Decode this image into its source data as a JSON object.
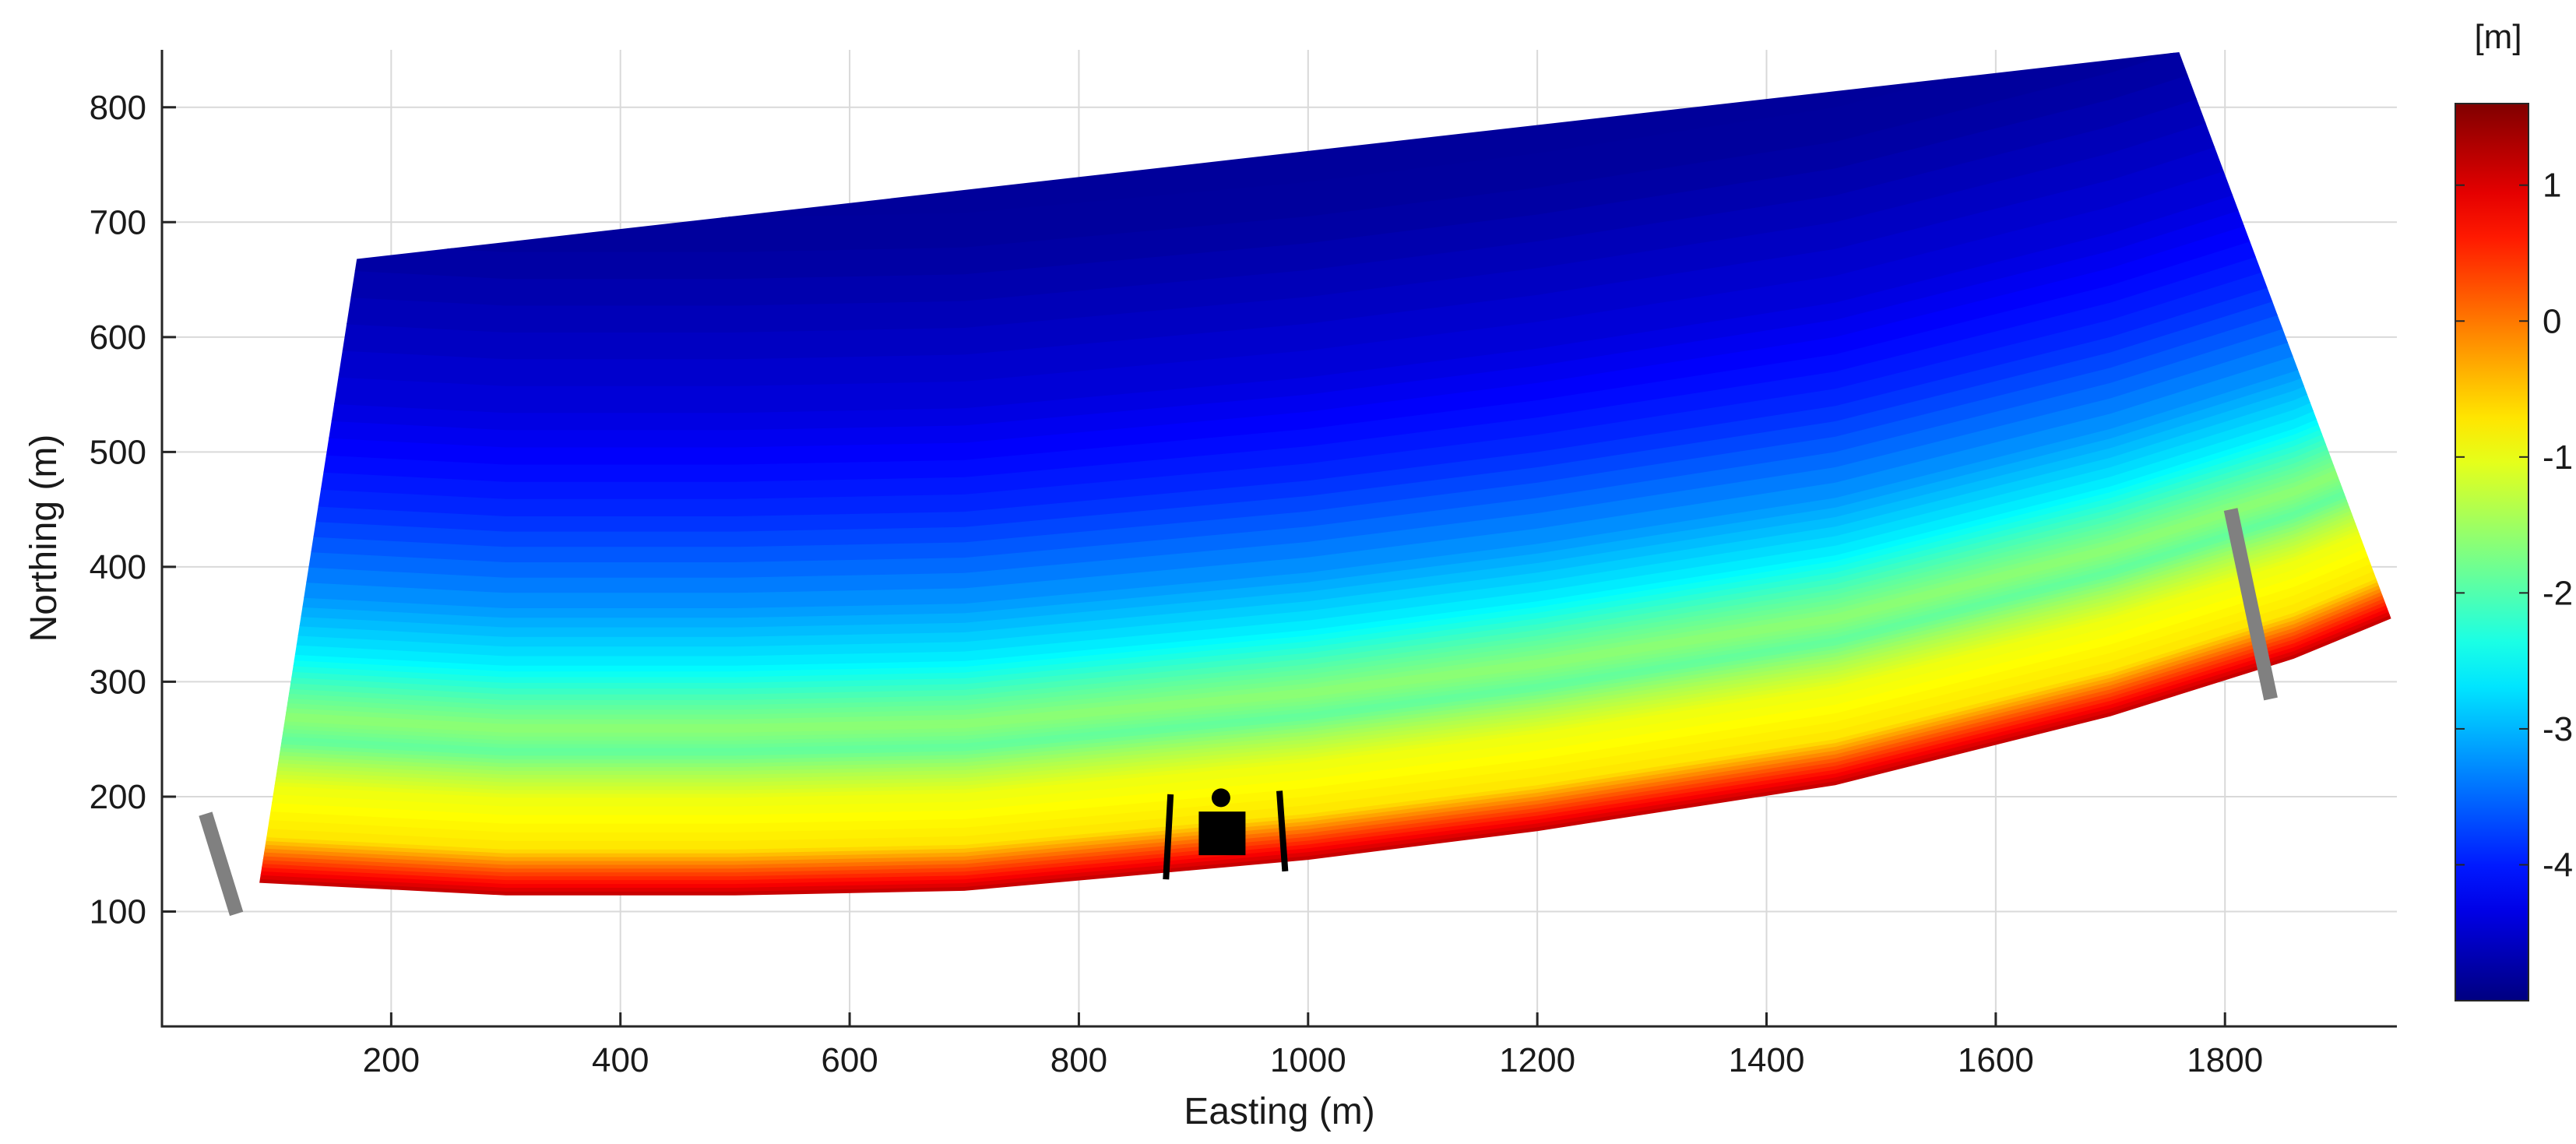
{
  "chart_data": {
    "type": "heatmap",
    "title": "",
    "xlabel": "Easting (m)",
    "ylabel": "Northing (m)",
    "xlim": [
      0,
      1950
    ],
    "ylim": [
      0,
      850
    ],
    "xticks": [
      200,
      400,
      600,
      800,
      1000,
      1200,
      1400,
      1600,
      1800
    ],
    "yticks": [
      100,
      200,
      300,
      400,
      500,
      600,
      700,
      800
    ],
    "grid": true,
    "colorbar": {
      "label": "[m]",
      "range": [
        -5.0,
        1.6
      ],
      "ticks": [
        1,
        0,
        -1,
        -2,
        -3,
        -4
      ],
      "colormap": "jet"
    },
    "domain_outline": [
      [
        170,
        668
      ],
      [
        1760,
        848
      ],
      [
        1945,
        355
      ],
      [
        1860,
        320
      ],
      [
        1700,
        270
      ],
      [
        1460,
        210
      ],
      [
        1200,
        170
      ],
      [
        1000,
        145
      ],
      [
        700,
        118
      ],
      [
        500,
        114
      ],
      [
        300,
        114
      ],
      [
        85,
        125
      ]
    ],
    "bottom_edge": [
      [
        85,
        125
      ],
      [
        300,
        114
      ],
      [
        500,
        114
      ],
      [
        700,
        118
      ],
      [
        1000,
        145
      ],
      [
        1200,
        170
      ],
      [
        1460,
        210
      ],
      [
        1700,
        270
      ],
      [
        1860,
        320
      ],
      [
        1945,
        355
      ]
    ],
    "top_edge": [
      [
        170,
        668
      ],
      [
        1760,
        848
      ]
    ],
    "band_offsets": [
      {
        "offset": 0,
        "level": 1.2
      },
      {
        "offset": 20,
        "level": 0.3
      },
      {
        "offset": 40,
        "level": -0.7
      },
      {
        "offset": 85,
        "level": -1.0
      },
      {
        "offset": 105,
        "level": -1.4
      },
      {
        "offset": 125,
        "level": -1.9
      },
      {
        "offset": 145,
        "level": -1.6
      },
      {
        "offset": 170,
        "level": -2.0
      },
      {
        "offset": 200,
        "level": -2.6
      },
      {
        "offset": 250,
        "level": -3.2
      },
      {
        "offset": 330,
        "level": -3.9
      },
      {
        "offset": 420,
        "level": -4.4
      },
      {
        "offset": 560,
        "level": -4.8
      },
      {
        "offset": 740,
        "level": -4.9
      }
    ],
    "structures": [
      {
        "kind": "groin",
        "color": "#808080",
        "from": [
          38,
          185
        ],
        "to": [
          65,
          98
        ]
      },
      {
        "kind": "groin",
        "color": "#808080",
        "from": [
          1805,
          450
        ],
        "to": [
          1840,
          285
        ]
      },
      {
        "kind": "breakwater",
        "color": "#000000",
        "from": [
          880,
          202
        ],
        "to": [
          876,
          128
        ]
      },
      {
        "kind": "breakwater",
        "color": "#000000",
        "from": [
          975,
          205
        ],
        "to": [
          980,
          135
        ]
      },
      {
        "kind": "pier-block",
        "color": "#000000",
        "center": [
          925,
          168
        ]
      },
      {
        "kind": "pier-head",
        "color": "#000000",
        "center": [
          924,
          199
        ]
      }
    ]
  }
}
